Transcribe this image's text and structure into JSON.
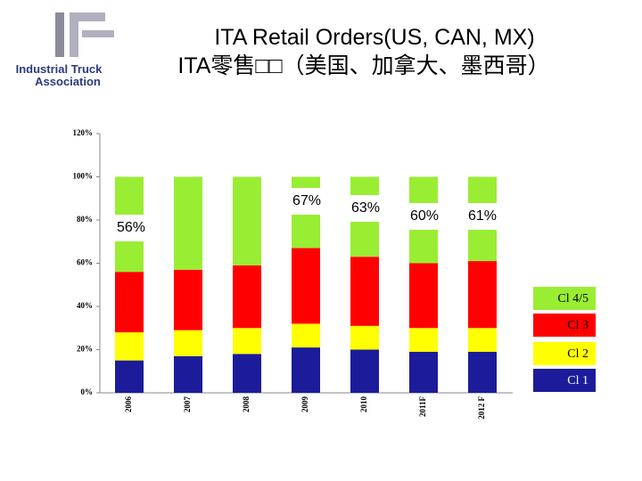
{
  "chart_data": {
    "type": "stacked_bar",
    "title": "ITA Retail Orders(US, CAN, MX)",
    "subtitle": "ITA零售□□（美国、加拿大、墨西哥）",
    "logo": [
      "Industrial Truck",
      "Association"
    ],
    "categories": [
      "2006",
      "2007",
      "2008",
      "2009",
      "2010",
      "2011F",
      "2012 F"
    ],
    "series": [
      {
        "name": "Cl 1",
        "color": "#1c1c9a",
        "values": [
          15,
          17,
          18,
          21,
          20,
          19,
          19
        ]
      },
      {
        "name": "Cl 2",
        "color": "#ffff00",
        "values": [
          13,
          12,
          12,
          11,
          11,
          11,
          11
        ]
      },
      {
        "name": "Cl 3",
        "color": "#ff0000",
        "values": [
          28,
          28,
          29,
          35,
          32,
          30,
          31
        ]
      },
      {
        "name": "Cl 4/5",
        "color": "#99ee33",
        "values": [
          44,
          43,
          41,
          33,
          37,
          40,
          39
        ]
      }
    ],
    "annotations": [
      "56%",
      "67%",
      "63%",
      "60%",
      "61%"
    ],
    "ylim": [
      0,
      120
    ],
    "yticks": [
      {
        "value": 0,
        "label": "0%"
      },
      {
        "value": 20,
        "label": "20%"
      },
      {
        "value": 40,
        "label": "40%"
      },
      {
        "value": 60,
        "label": "60%"
      },
      {
        "value": 80,
        "label": "80%"
      },
      {
        "value": 100,
        "label": "100%"
      },
      {
        "value": 120,
        "label": "120%"
      }
    ]
  }
}
